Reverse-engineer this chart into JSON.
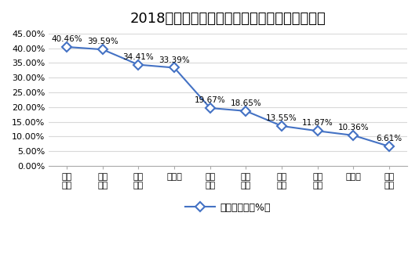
{
  "title": "2018年国内主要传感器上市企业营收增长率情况",
  "x_labels": [
    "大立\n科技",
    "上海\n贝岭",
    "紫光\n国芯",
    "珍珠港",
    "盛和\n资源",
    "耐威\n科技",
    "盾安\n环境",
    "中航\n电测",
    "士兰微",
    "高德\n红外"
  ],
  "values": [
    40.46,
    39.59,
    34.41,
    33.39,
    19.67,
    18.65,
    13.55,
    11.87,
    10.36,
    6.61
  ],
  "labels": [
    "40.46%",
    "39.59%",
    "34.41%",
    "33.39%",
    "19.67%",
    "18.65%",
    "13.55%",
    "11.87%",
    "10.36%",
    "6.61%"
  ],
  "line_color": "#4472C4",
  "marker_style": "D",
  "marker_face_color": "#ffffff",
  "marker_edge_color": "#4472C4",
  "legend_label": "营收增长率（%）",
  "ylim": [
    0,
    45
  ],
  "yticks": [
    0,
    5,
    10,
    15,
    20,
    25,
    30,
    35,
    40,
    45
  ],
  "ytick_labels": [
    "0.00%",
    "5.00%",
    "10.00%",
    "15.00%",
    "20.00%",
    "25.00%",
    "30.00%",
    "35.00%",
    "40.00%",
    "45.00%"
  ],
  "background_color": "#ffffff",
  "title_fontsize": 13,
  "label_fontsize": 7.5,
  "tick_fontsize": 8,
  "legend_fontsize": 9,
  "grid_color": "#d9d9d9"
}
